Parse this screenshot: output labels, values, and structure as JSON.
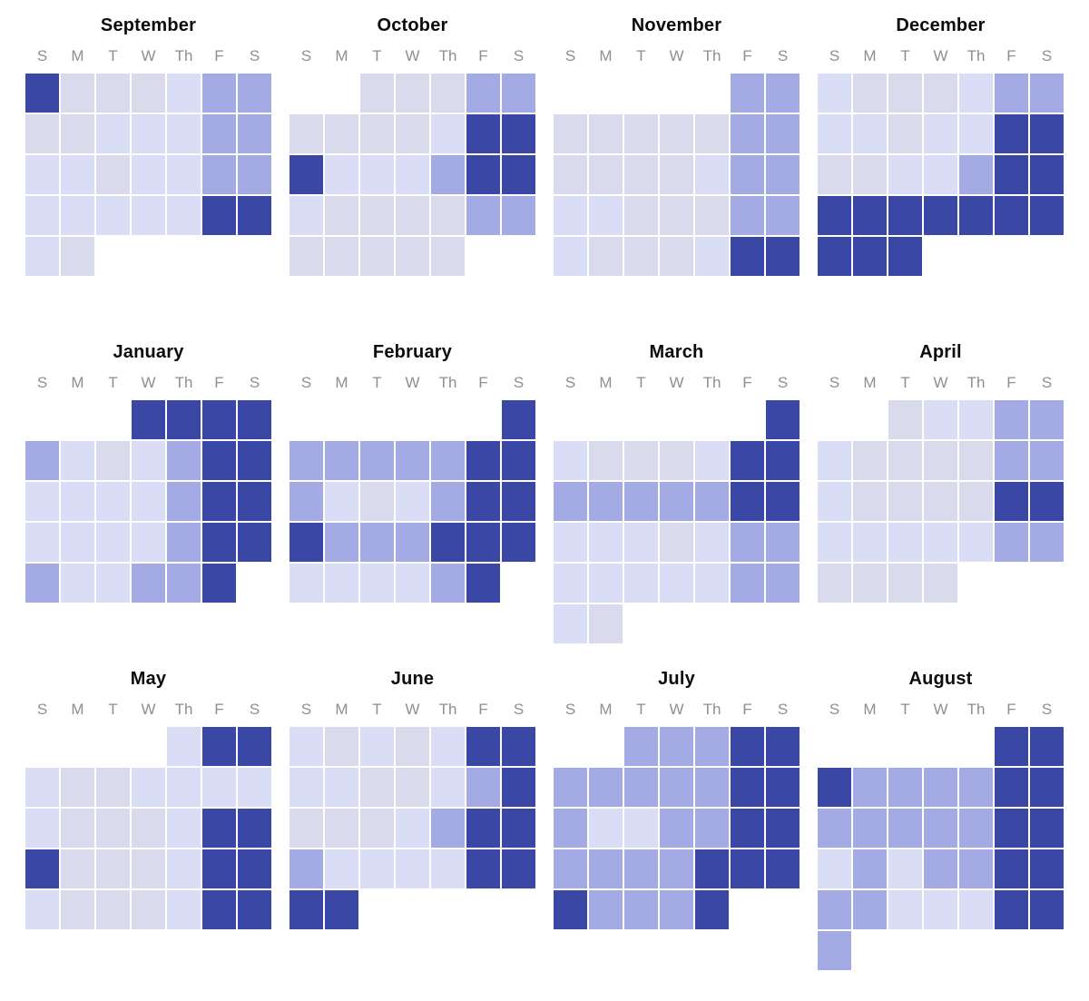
{
  "chart_data": {
    "type": "heatmap",
    "subtype": "calendar-year-heatmap",
    "title": "",
    "legend_position": "none",
    "grid": "white 2px gaps between day cells",
    "day_headers": [
      "S",
      "M",
      "T",
      "W",
      "Th",
      "F",
      "S"
    ],
    "level_scale_note": "0 = no day (empty slot), 1 = low (gray-lavender), 2 = low (blue-lavender), 3 = medium (periwinkle), 4 = high (dark indigo)",
    "palette": {
      "0": "transparent",
      "1": "#d9dbec",
      "2": "#d9ddf6",
      "3": "#a4aae3",
      "4": "#3b47a5"
    },
    "text_colors": {
      "month_title": "#0c0c0d",
      "day_header": "#8e8e93"
    },
    "months": [
      {
        "name": "September",
        "weeks": [
          "4111233",
          "1122233",
          "2212233",
          "2222244",
          "2100000"
        ]
      },
      {
        "name": "October",
        "weeks": [
          "0011133",
          "1111244",
          "4222344",
          "2111133",
          "1111100"
        ]
      },
      {
        "name": "November",
        "weeks": [
          "0000033",
          "1111133",
          "1111233",
          "2211133",
          "2111244"
        ]
      },
      {
        "name": "December",
        "weeks": [
          "2111233",
          "2212244",
          "1122344",
          "4444444",
          "4440000"
        ]
      },
      {
        "name": "January",
        "weeks": [
          "0004444",
          "3212344",
          "2222344",
          "2222344",
          "3223340"
        ]
      },
      {
        "name": "February",
        "weeks": [
          "0000004",
          "3333344",
          "3212344",
          "4333444",
          "2222340"
        ]
      },
      {
        "name": "March",
        "weeks": [
          "0000004",
          "2111244",
          "3333344",
          "2221233",
          "2222233",
          "2100000"
        ]
      },
      {
        "name": "April",
        "weeks": [
          "0012233",
          "2111133",
          "2111144",
          "2222233",
          "1111000"
        ]
      },
      {
        "name": "May",
        "weeks": [
          "0000244",
          "2112222",
          "2111244",
          "4111244",
          "2111244"
        ]
      },
      {
        "name": "June",
        "weeks": [
          "2121244",
          "2211234",
          "1112344",
          "3222244",
          "4400000"
        ]
      },
      {
        "name": "July",
        "weeks": [
          "0033344",
          "3333344",
          "3223344",
          "3333444",
          "4333400"
        ]
      },
      {
        "name": "August",
        "weeks": [
          "0000044",
          "4333344",
          "3333344",
          "2323344",
          "3322244",
          "3000000"
        ]
      }
    ]
  }
}
